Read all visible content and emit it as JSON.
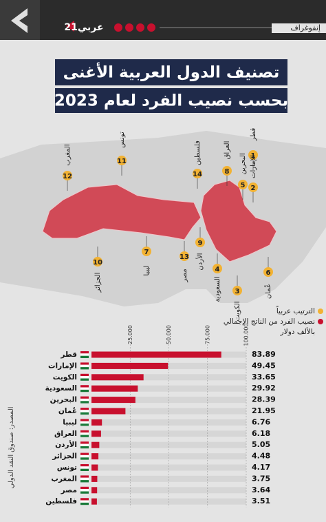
{
  "header": {
    "brand": "عربي21",
    "section": "إنفوغراف",
    "title_line1": "تصنيف الدول العربية الأغنى",
    "title_line2": "بحسب نصيب الفرد لعام 2023"
  },
  "map": {
    "labels": [
      {
        "rank": 1,
        "name": "قطر"
      },
      {
        "rank": 2,
        "name": "الإمارات"
      },
      {
        "rank": 3,
        "name": "الكويت"
      },
      {
        "rank": 4,
        "name": "السعودية"
      },
      {
        "rank": 5,
        "name": "البحرين"
      },
      {
        "rank": 6,
        "name": "عُمان"
      },
      {
        "rank": 7,
        "name": "ليبيا"
      },
      {
        "rank": 8,
        "name": "العراق"
      },
      {
        "rank": 9,
        "name": "الأردن"
      },
      {
        "rank": 10,
        "name": "الجزائر"
      },
      {
        "rank": 11,
        "name": "تونس"
      },
      {
        "rank": 12,
        "name": "المغرب"
      },
      {
        "rank": 13,
        "name": "مصر"
      },
      {
        "rank": 14,
        "name": "فلسطين"
      }
    ]
  },
  "legend": {
    "rank": "الترتيب عربياً",
    "gdp": "نصيب الفرد من الناتج الإجمالي",
    "unit": "بالألف دولار"
  },
  "source": "المصدر: صندوق النقد الدولي",
  "chart_data": {
    "type": "bar",
    "orientation": "horizontal",
    "categories": [
      "قطر",
      "الإمارات",
      "الكويت",
      "السعودية",
      "البحرين",
      "عُمان",
      "ليبيا",
      "العراق",
      "الأردن",
      "الجزائر",
      "تونس",
      "المغرب",
      "مصر",
      "فلسطين"
    ],
    "values": [
      83.89,
      49.45,
      33.65,
      29.92,
      28.39,
      21.95,
      6.76,
      6.18,
      5.05,
      4.48,
      4.17,
      3.75,
      3.64,
      3.51
    ],
    "color": "#c8102e",
    "track_color": "#d6d6d6",
    "xlim": [
      0,
      100
    ],
    "xticks": [
      {
        "value": 25,
        "label": "25.000"
      },
      {
        "value": 50,
        "label": "50.000"
      },
      {
        "value": 75,
        "label": "75.000"
      },
      {
        "value": 100,
        "label": "100.000"
      }
    ],
    "grid": true
  }
}
